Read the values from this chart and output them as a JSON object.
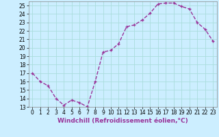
{
  "x": [
    0,
    1,
    2,
    3,
    4,
    5,
    6,
    7,
    8,
    9,
    10,
    11,
    12,
    13,
    14,
    15,
    16,
    17,
    18,
    19,
    20,
    21,
    22,
    23
  ],
  "y": [
    17.0,
    16.0,
    15.5,
    14.0,
    13.2,
    13.8,
    13.5,
    13.0,
    16.0,
    19.5,
    19.7,
    20.5,
    22.5,
    22.7,
    23.3,
    24.1,
    25.2,
    25.3,
    25.3,
    24.9,
    24.6,
    23.0,
    22.2,
    20.8
  ],
  "line_color": "#993399",
  "marker": "+",
  "bg_color": "#cceeff",
  "grid_color": "#aadddd",
  "xlabel": "Windchill (Refroidissement éolien,°C)",
  "ylim": [
    13,
    25.5
  ],
  "xlim": [
    -0.5,
    23.5
  ],
  "yticks": [
    13,
    14,
    15,
    16,
    17,
    18,
    19,
    20,
    21,
    22,
    23,
    24,
    25
  ],
  "xticks": [
    0,
    1,
    2,
    3,
    4,
    5,
    6,
    7,
    8,
    9,
    10,
    11,
    12,
    13,
    14,
    15,
    16,
    17,
    18,
    19,
    20,
    21,
    22,
    23
  ],
  "tick_fontsize": 5.5,
  "xlabel_fontsize": 6.5,
  "line_width": 1.0,
  "marker_size": 3.5,
  "marker_ew": 1.0
}
